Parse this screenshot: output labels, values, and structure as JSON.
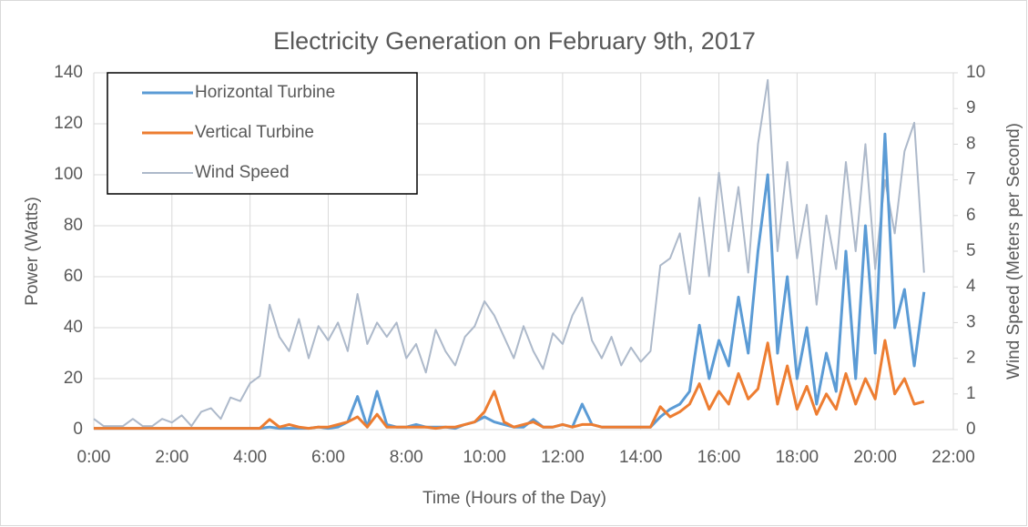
{
  "chart_data": {
    "type": "line",
    "title": "Electricity Generation on February 9th, 2017",
    "x_label": "Time (Hours of the Day)",
    "y_label": "Power (Watts)",
    "y2_label": "Wind Speed (Meters per Second)",
    "x": [
      0,
      0.25,
      0.5,
      0.75,
      1,
      1.25,
      1.5,
      1.75,
      2,
      2.25,
      2.5,
      2.75,
      3,
      3.25,
      3.5,
      3.75,
      4,
      4.25,
      4.5,
      4.75,
      5,
      5.25,
      5.5,
      5.75,
      6,
      6.25,
      6.5,
      6.75,
      7,
      7.25,
      7.5,
      7.75,
      8,
      8.25,
      8.5,
      8.75,
      9,
      9.25,
      9.5,
      9.75,
      10,
      10.25,
      10.5,
      10.75,
      11,
      11.25,
      11.5,
      11.75,
      12,
      12.25,
      12.5,
      12.75,
      13,
      13.25,
      13.5,
      13.75,
      14,
      14.25,
      14.5,
      14.75,
      15,
      15.25,
      15.5,
      15.75,
      16,
      16.25,
      16.5,
      16.75,
      17,
      17.25,
      17.5,
      17.75,
      18,
      18.25,
      18.5,
      18.75,
      19,
      19.25,
      19.5,
      19.75,
      20,
      20.25,
      20.5,
      20.75,
      21,
      21.25
    ],
    "series": [
      {
        "name": "Wind Speed",
        "color": "#adb9ca",
        "axis": "y2",
        "width": 2,
        "values": [
          0.3,
          0.1,
          0.1,
          0.1,
          0.3,
          0.1,
          0.1,
          0.3,
          0.2,
          0.4,
          0.1,
          0.5,
          0.6,
          0.3,
          0.9,
          0.8,
          1.3,
          1.5,
          3.5,
          2.6,
          2.2,
          3.1,
          2.0,
          2.9,
          2.5,
          3.0,
          2.2,
          3.8,
          2.4,
          3.0,
          2.6,
          3.0,
          2.0,
          2.4,
          1.6,
          2.8,
          2.2,
          1.8,
          2.6,
          2.9,
          3.6,
          3.2,
          2.6,
          2.0,
          2.9,
          2.2,
          1.7,
          2.7,
          2.4,
          3.2,
          3.7,
          2.5,
          2.0,
          2.6,
          1.8,
          2.3,
          1.9,
          2.2,
          4.6,
          4.8,
          5.5,
          3.8,
          6.5,
          4.3,
          7.2,
          5.0,
          6.8,
          4.4,
          8.0,
          9.8,
          5.0,
          7.5,
          4.8,
          6.3,
          3.5,
          6.0,
          4.5,
          7.5,
          5.0,
          8.0,
          4.5,
          7.0,
          5.5,
          7.8,
          8.6,
          4.4
        ]
      },
      {
        "name": "Horizontal Turbine",
        "color": "#5b9bd5",
        "width": 3,
        "values": [
          0.5,
          0.5,
          0.5,
          0.5,
          0.5,
          0.5,
          0.5,
          0.5,
          0.5,
          0.5,
          0.5,
          0.5,
          0.5,
          0.5,
          0.5,
          0.5,
          0.5,
          0.5,
          1,
          0.5,
          0.5,
          0.5,
          0.5,
          1,
          0.5,
          1,
          3,
          13,
          1,
          15,
          2,
          1,
          1,
          2,
          1,
          1,
          1,
          0.5,
          2,
          3,
          5,
          3,
          2,
          1,
          1,
          4,
          1,
          1,
          2,
          1,
          10,
          2,
          1,
          1,
          1,
          1,
          1,
          1,
          5,
          8,
          10,
          15,
          41,
          20,
          35,
          25,
          52,
          30,
          70,
          100,
          30,
          60,
          20,
          40,
          10,
          30,
          15,
          70,
          20,
          80,
          30,
          116,
          40,
          55,
          25,
          54
        ]
      },
      {
        "name": "Vertical Turbine",
        "color": "#ed7d31",
        "width": 3,
        "values": [
          0.5,
          0.5,
          0.5,
          0.5,
          0.5,
          0.5,
          0.5,
          0.5,
          0.5,
          0.5,
          0.5,
          0.5,
          0.5,
          0.5,
          0.5,
          0.5,
          0.5,
          0.5,
          4,
          1,
          2,
          1,
          0.5,
          1,
          1,
          2,
          3,
          5,
          1,
          6,
          1,
          1,
          1,
          1,
          1,
          0.5,
          1,
          1,
          2,
          3,
          7,
          15,
          3,
          1,
          2,
          3,
          1,
          1,
          2,
          1,
          2,
          2,
          1,
          1,
          1,
          1,
          1,
          1,
          9,
          5,
          7,
          10,
          18,
          8,
          15,
          10,
          22,
          12,
          16,
          34,
          10,
          25,
          8,
          17,
          6,
          14,
          8,
          22,
          10,
          20,
          12,
          35,
          14,
          20,
          10,
          11
        ]
      }
    ],
    "legend_order": [
      "Horizontal Turbine",
      "Vertical Turbine",
      "Wind Speed"
    ],
    "xlim": [
      0,
      22
    ],
    "xticks": [
      {
        "value": 0,
        "label": "0:00"
      },
      {
        "value": 2,
        "label": "2:00"
      },
      {
        "value": 4,
        "label": "4:00"
      },
      {
        "value": 6,
        "label": "6:00"
      },
      {
        "value": 8,
        "label": "8:00"
      },
      {
        "value": 10,
        "label": "10:00"
      },
      {
        "value": 12,
        "label": "12:00"
      },
      {
        "value": 14,
        "label": "14:00"
      },
      {
        "value": 16,
        "label": "16:00"
      },
      {
        "value": 18,
        "label": "18:00"
      },
      {
        "value": 20,
        "label": "20:00"
      },
      {
        "value": 22,
        "label": "22:00"
      }
    ],
    "ylim": [
      0,
      140
    ],
    "yticks": [
      0,
      20,
      40,
      60,
      80,
      100,
      120,
      140
    ],
    "y2lim": [
      0,
      10
    ],
    "y2ticks": [
      0,
      1,
      2,
      3,
      4,
      5,
      6,
      7,
      8,
      9,
      10
    ],
    "grid": true,
    "legend": "upper left"
  }
}
